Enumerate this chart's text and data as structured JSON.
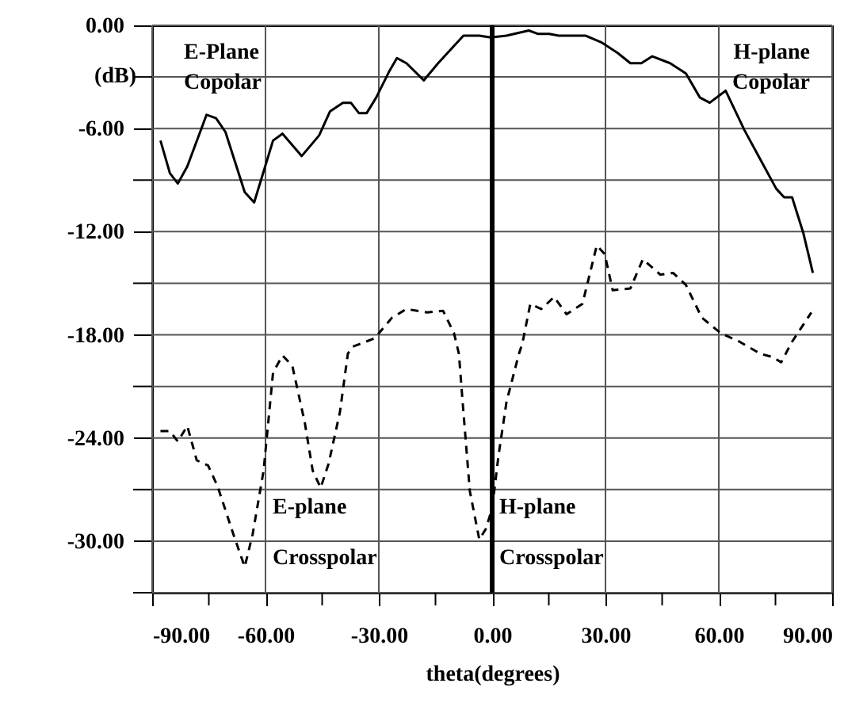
{
  "chart_data": {
    "type": "line",
    "xlabel": "theta(degrees)",
    "ylabel": "(dB)",
    "xlim": [
      -90,
      90
    ],
    "ylim": [
      -33,
      0
    ],
    "xticks": [
      {
        "value": -90,
        "label": "-90.00"
      },
      {
        "value": -75,
        "label": null
      },
      {
        "value": -60,
        "label": "-60.00"
      },
      {
        "value": -45,
        "label": null
      },
      {
        "value": -30,
        "label": "-30.00"
      },
      {
        "value": -15,
        "label": null
      },
      {
        "value": 0,
        "label": "0.00"
      },
      {
        "value": 15,
        "label": null
      },
      {
        "value": 30,
        "label": "30.00"
      },
      {
        "value": 45,
        "label": null
      },
      {
        "value": 60,
        "label": "60.00"
      },
      {
        "value": 75,
        "label": null
      },
      {
        "value": 90,
        "label": "90.00"
      }
    ],
    "yticks": [
      {
        "value": 0,
        "label": "0.00"
      },
      {
        "value": -3,
        "label": null
      },
      {
        "value": -6,
        "label": "-6.00"
      },
      {
        "value": -9,
        "label": null
      },
      {
        "value": -12,
        "label": "-12.00"
      },
      {
        "value": -15,
        "label": null
      },
      {
        "value": -18,
        "label": "-18.00"
      },
      {
        "value": -21,
        "label": null
      },
      {
        "value": -24,
        "label": "-24.00"
      },
      {
        "value": -27,
        "label": null
      },
      {
        "value": -30,
        "label": "-30.00"
      },
      {
        "value": -33,
        "label": null
      }
    ],
    "grid": true,
    "marker": "none",
    "series": [
      {
        "color": "#000000",
        "line_style": "solid",
        "x": [
          -87.8,
          -85.3,
          -83.2,
          -80.7,
          -75.6,
          -73.1,
          -70.6,
          -65.5,
          -63.0,
          -58.0,
          -55.5,
          -50.4,
          -45.8,
          -42.9,
          -39.5,
          -37.4,
          -35.3,
          -33.2,
          -30.7,
          -27.3,
          -25.2,
          -22.7,
          -18.1,
          -14.3,
          -7.6,
          -3.4,
          -0.4,
          3.8,
          9.7,
          12.2,
          15.1,
          17.6,
          24.8,
          29.0,
          33.2,
          36.6,
          39.5,
          42.4,
          47.1,
          51.3,
          55.0,
          57.6,
          61.8,
          66.8,
          71.0,
          75.2,
          77.3,
          79.4,
          82.4,
          84.9
        ],
        "values": [
          -6.7,
          -8.6,
          -9.2,
          -8.2,
          -5.2,
          -5.4,
          -6.2,
          -9.7,
          -10.3,
          -6.7,
          -6.3,
          -7.6,
          -6.4,
          -5.0,
          -4.5,
          -4.5,
          -5.1,
          -5.1,
          -4.2,
          -2.7,
          -1.9,
          -2.2,
          -3.2,
          -2.2,
          -0.6,
          -0.6,
          -0.7,
          -0.6,
          -0.3,
          -0.5,
          -0.5,
          -0.6,
          -0.6,
          -1.0,
          -1.6,
          -2.2,
          -2.2,
          -1.8,
          -2.2,
          -2.8,
          -4.2,
          -4.5,
          -3.8,
          -6.1,
          -7.8,
          -9.5,
          -10.0,
          -10.0,
          -12.1,
          -14.4
        ]
      },
      {
        "color": "#000000",
        "line_style": "dashed",
        "x": [
          -87.8,
          -85.3,
          -83.2,
          -80.7,
          -78.2,
          -75.2,
          -72.7,
          -68.5,
          -65.5,
          -63.4,
          -60.5,
          -58.0,
          -55.5,
          -52.9,
          -49.6,
          -47.5,
          -45.4,
          -43.3,
          -40.3,
          -38.2,
          -37.0,
          -31.1,
          -26.5,
          -22.7,
          -17.2,
          -13.0,
          -10.1,
          -8.8,
          -7.6,
          -5.9,
          -3.4,
          -1.7,
          0,
          1.7,
          3.8,
          7.1,
          8.0,
          10.1,
          13.0,
          16.4,
          19.7,
          23.9,
          27.7,
          29.8,
          31.9,
          36.6,
          39.9,
          44.5,
          47.9,
          51.3,
          55.5,
          60.5,
          65.5,
          71.0,
          74.4,
          76.5,
          79.4,
          84.5
        ],
        "values": [
          -23.6,
          -23.6,
          -24.2,
          -23.3,
          -25.3,
          -25.6,
          -26.8,
          -29.6,
          -31.5,
          -29.6,
          -25.9,
          -20.2,
          -19.2,
          -19.8,
          -23.1,
          -25.9,
          -26.9,
          -25.5,
          -22.5,
          -19.1,
          -18.7,
          -18.2,
          -17.0,
          -16.5,
          -16.7,
          -16.6,
          -17.9,
          -19.1,
          -22.5,
          -27.1,
          -29.9,
          -29.3,
          -28.1,
          -25.0,
          -21.9,
          -19.1,
          -18.5,
          -16.2,
          -16.5,
          -15.8,
          -16.8,
          -16.2,
          -12.8,
          -13.3,
          -15.4,
          -15.3,
          -13.6,
          -14.5,
          -14.4,
          -15.1,
          -17.0,
          -17.9,
          -18.4,
          -19.1,
          -19.3,
          -19.6,
          -18.4,
          -16.7
        ]
      }
    ],
    "ref_lines": [
      {
        "axis": "x",
        "value": 0,
        "color": "#000000"
      }
    ],
    "annotations": [
      "E-Plane Copolar",
      "H-plane Copolar",
      "E-plane Crosspolar",
      "H-plane Crosspolar"
    ]
  }
}
